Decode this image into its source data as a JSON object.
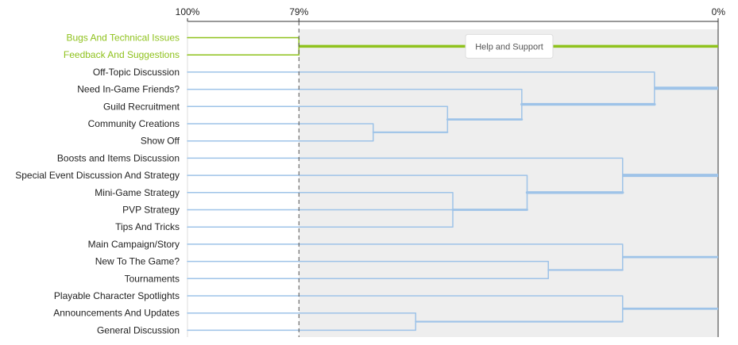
{
  "chart_data": {
    "type": "dendrogram",
    "title": "",
    "xlabel": "",
    "ylabel": "",
    "x_axis": {
      "direction": "reversed",
      "unit": "%",
      "range": [
        100,
        0
      ],
      "ticks": [
        {
          "value": 100,
          "label": "100%"
        },
        {
          "value": 79,
          "label": "79%"
        },
        {
          "value": 0,
          "label": "0%"
        }
      ]
    },
    "threshold": {
      "value": 79,
      "style": "dashed"
    },
    "colors": {
      "highlight": "#8fc21d",
      "branch": "#9ec3e8",
      "threshold_line": "#555555",
      "plot_background": "#eeeeee",
      "axis": "#333333"
    },
    "leaves": [
      {
        "id": "bugs",
        "label": "Bugs And Technical Issues",
        "highlight": true
      },
      {
        "id": "feedback",
        "label": "Feedback And Suggestions",
        "highlight": true
      },
      {
        "id": "offtopic",
        "label": "Off-Topic Discussion"
      },
      {
        "id": "friends",
        "label": "Need In-Game Friends?"
      },
      {
        "id": "guild",
        "label": "Guild Recruitment"
      },
      {
        "id": "community",
        "label": "Community Creations"
      },
      {
        "id": "showoff",
        "label": "Show Off"
      },
      {
        "id": "boosts",
        "label": "Boosts and Items Discussion"
      },
      {
        "id": "special",
        "label": "Special Event Discussion And Strategy"
      },
      {
        "id": "minigame",
        "label": "Mini-Game Strategy"
      },
      {
        "id": "pvp",
        "label": "PVP Strategy"
      },
      {
        "id": "tips",
        "label": "Tips And Tricks"
      },
      {
        "id": "campaign",
        "label": "Main Campaign/Story"
      },
      {
        "id": "newto",
        "label": "New To The Game?"
      },
      {
        "id": "tournaments",
        "label": "Tournaments"
      },
      {
        "id": "playable",
        "label": "Playable Character Spotlights"
      },
      {
        "id": "announce",
        "label": "Announcements And Updates"
      },
      {
        "id": "general",
        "label": "General Discussion"
      }
    ],
    "merges": [
      {
        "id": "c_help",
        "children": [
          "bugs",
          "feedback"
        ],
        "similarity": 79,
        "highlight": true
      },
      {
        "id": "c1",
        "children": [
          "community",
          "showoff"
        ],
        "similarity": 65
      },
      {
        "id": "c2",
        "children": [
          "guild",
          "c1"
        ],
        "similarity": 51
      },
      {
        "id": "c3",
        "children": [
          "friends",
          "c2"
        ],
        "similarity": 37
      },
      {
        "id": "c4",
        "children": [
          "offtopic",
          "c3"
        ],
        "similarity": 12
      },
      {
        "id": "c5",
        "children": [
          "minigame",
          "pvp",
          "tips"
        ],
        "similarity": 50
      },
      {
        "id": "c6",
        "children": [
          "special",
          "c5"
        ],
        "similarity": 36
      },
      {
        "id": "c7",
        "children": [
          "boosts",
          "c6"
        ],
        "similarity": 18
      },
      {
        "id": "c8",
        "children": [
          "newto",
          "tournaments"
        ],
        "similarity": 32
      },
      {
        "id": "c9",
        "children": [
          "campaign",
          "c8"
        ],
        "similarity": 18
      },
      {
        "id": "c10",
        "children": [
          "announce",
          "general"
        ],
        "similarity": 57
      },
      {
        "id": "c11",
        "children": [
          "playable",
          "c10"
        ],
        "similarity": 18
      }
    ],
    "tooltip": {
      "text": "Help and Support",
      "cluster": "c_help"
    }
  }
}
